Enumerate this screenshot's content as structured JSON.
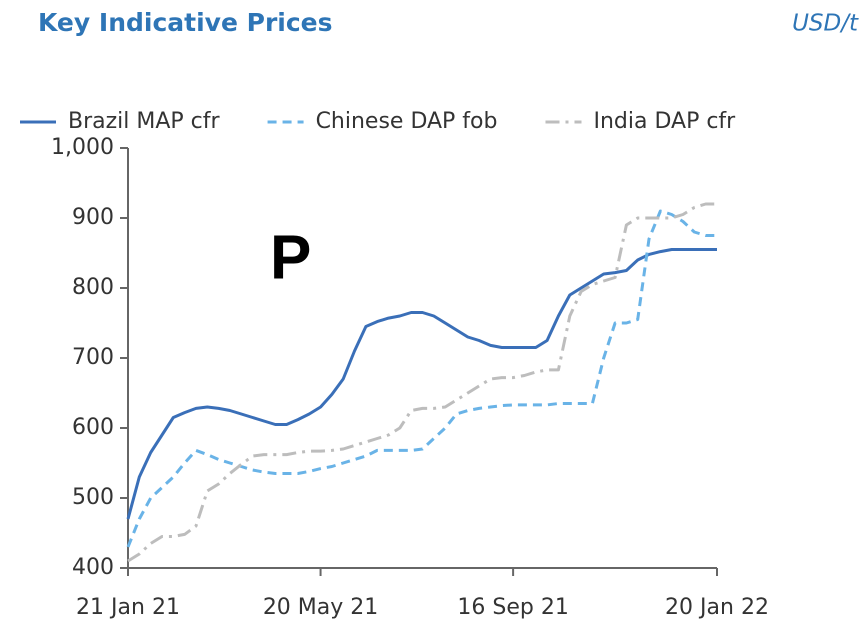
{
  "chart_data": {
    "type": "line",
    "title": "Key Indicative Prices",
    "subtitle": "USD/t",
    "annotation": "P",
    "categories": [
      "21 Jan 21",
      null,
      null,
      null,
      null,
      null,
      null,
      null,
      null,
      null,
      null,
      null,
      null,
      null,
      null,
      null,
      null,
      "20 May 21",
      null,
      null,
      null,
      null,
      null,
      null,
      null,
      null,
      null,
      null,
      null,
      null,
      null,
      null,
      null,
      null,
      "16 Sep 21",
      null,
      null,
      null,
      null,
      null,
      null,
      null,
      null,
      null,
      null,
      null,
      null,
      null,
      null,
      null,
      null,
      null,
      "20 Jan 22"
    ],
    "series": [
      {
        "name": "Brazil MAP cfr",
        "color": "#3a6fb8",
        "dash": "solid",
        "values": [
          470,
          530,
          565,
          590,
          615,
          622,
          628,
          630,
          628,
          625,
          620,
          615,
          610,
          605,
          605,
          612,
          620,
          630,
          648,
          670,
          710,
          745,
          752,
          757,
          760,
          765,
          765,
          760,
          750,
          740,
          730,
          725,
          718,
          715,
          715,
          715,
          715,
          725,
          760,
          790,
          800,
          810,
          820,
          822,
          825,
          840,
          848,
          852,
          855,
          855,
          855,
          855,
          855
        ]
      },
      {
        "name": "Chinese DAP fob",
        "color": "#69b3e7",
        "dash": "dashed",
        "values": [
          430,
          470,
          500,
          515,
          530,
          550,
          568,
          562,
          555,
          550,
          545,
          540,
          537,
          535,
          535,
          535,
          538,
          542,
          545,
          550,
          555,
          560,
          568,
          568,
          568,
          568,
          570,
          585,
          600,
          620,
          625,
          628,
          630,
          632,
          633,
          633,
          633,
          633,
          635,
          635,
          635,
          635,
          700,
          750,
          750,
          755,
          870,
          910,
          905,
          895,
          880,
          875,
          875
        ]
      },
      {
        "name": "India DAP cfr",
        "color": "#bdbdbd",
        "dash": "dashdot",
        "values": [
          410,
          420,
          435,
          445,
          445,
          448,
          460,
          510,
          520,
          535,
          548,
          560,
          562,
          562,
          562,
          565,
          567,
          567,
          568,
          570,
          575,
          580,
          585,
          590,
          600,
          625,
          628,
          628,
          630,
          640,
          650,
          660,
          670,
          672,
          672,
          675,
          680,
          683,
          683,
          760,
          795,
          805,
          810,
          815,
          890,
          900,
          900,
          900,
          900,
          905,
          915,
          920,
          920
        ]
      }
    ],
    "ylim": [
      400,
      1000
    ],
    "yticks": [
      400,
      500,
      600,
      700,
      800,
      900,
      {
        "value": 1000,
        "label": "1,000"
      }
    ],
    "grid": false,
    "legend": "top"
  }
}
